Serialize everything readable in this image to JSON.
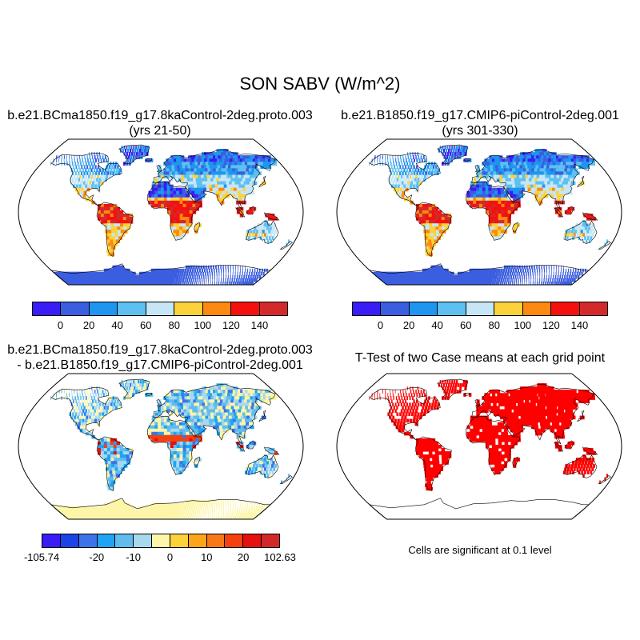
{
  "main_title": "SON SABV (W/m^2)",
  "panels": [
    {
      "line1": "b.e21.BCma1850.f19_g17.8kaControl-2deg.proto.003",
      "line2": "(yrs 21-50)",
      "colorbar": {
        "colors": [
          "#3a1cf5",
          "#3b5ee0",
          "#1e96f0",
          "#5ec0f0",
          "#c6e6f6",
          "#fcd23a",
          "#fc8a10",
          "#f51010",
          "#d22a2a"
        ],
        "labels": [
          "0",
          "20",
          "40",
          "60",
          "80",
          "100",
          "120",
          "140"
        ]
      }
    },
    {
      "line1": "b.e21.B1850.f19_g17.CMIP6-piControl-2deg.001",
      "line2": "(yrs 301-330)",
      "colorbar": {
        "colors": [
          "#3a1cf5",
          "#3b5ee0",
          "#1e96f0",
          "#5ec0f0",
          "#c6e6f6",
          "#fcd23a",
          "#fc8a10",
          "#f51010",
          "#d22a2a"
        ],
        "labels": [
          "0",
          "20",
          "40",
          "60",
          "80",
          "100",
          "120",
          "140"
        ]
      }
    },
    {
      "line1": "b.e21.BCma1850.f19_g17.8kaControl-2deg.proto.003",
      "line2": "- b.e21.B1850.f19_g17.CMIP6-piControl-2deg.001",
      "colorbar": {
        "colors": [
          "#3a1cf5",
          "#1a44e6",
          "#3b74e8",
          "#1ea4f2",
          "#60bcec",
          "#a8d8ee",
          "#fdf5a8",
          "#fcd23a",
          "#fca51a",
          "#f87818",
          "#f54010",
          "#e51010",
          "#d22a2a"
        ],
        "labels": [
          "-105.74",
          "-20",
          "-10",
          "0",
          "10",
          "20",
          "102.63"
        ]
      }
    },
    {
      "line1": "T-Test of two Case means at each grid point",
      "note": "Cells are significant at 0.1 level",
      "sig_color": "#ff0000"
    }
  ]
}
